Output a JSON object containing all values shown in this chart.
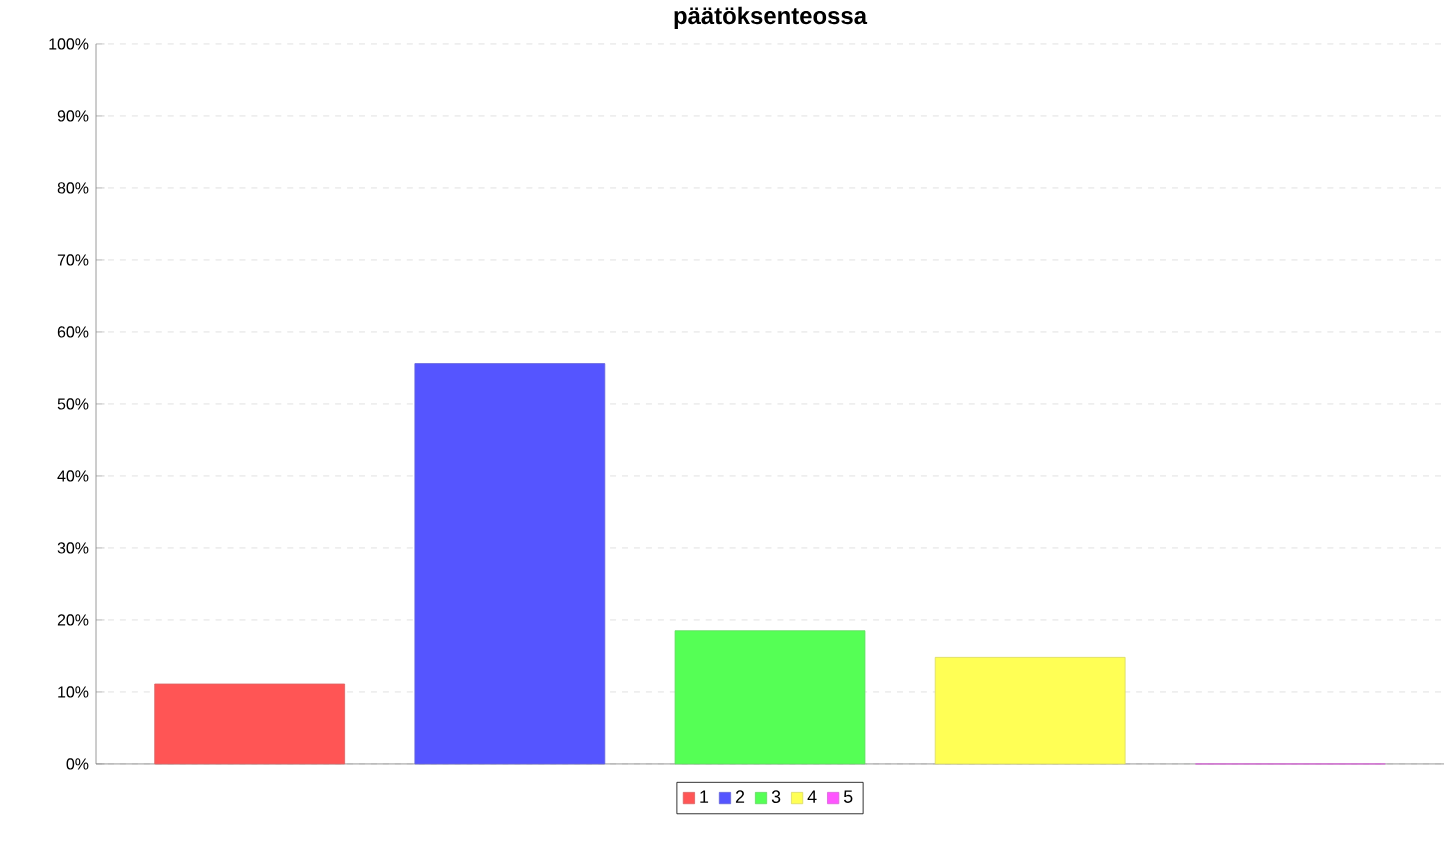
{
  "chart_data": {
    "type": "bar",
    "title": "päätöksenteossa",
    "categories": [
      null
    ],
    "series": [
      {
        "name": "1",
        "color": "#ff5555",
        "values": [
          11.1
        ]
      },
      {
        "name": "2",
        "color": "#5555ff",
        "values": [
          55.6
        ]
      },
      {
        "name": "3",
        "color": "#55ff55",
        "values": [
          18.5
        ]
      },
      {
        "name": "4",
        "color": "#ffff55",
        "values": [
          14.8
        ]
      },
      {
        "name": "5",
        "color": "#ff55ff",
        "values": [
          0
        ]
      }
    ],
    "ylim": [
      0,
      100
    ],
    "yticks": [
      {
        "value": 0,
        "label": "0%"
      },
      {
        "value": 10,
        "label": "10%"
      },
      {
        "value": 20,
        "label": "20%"
      },
      {
        "value": 30,
        "label": "30%"
      },
      {
        "value": 40,
        "label": "40%"
      },
      {
        "value": 50,
        "label": "50%"
      },
      {
        "value": 60,
        "label": "60%"
      },
      {
        "value": 70,
        "label": "70%"
      },
      {
        "value": 80,
        "label": "80%"
      },
      {
        "value": 90,
        "label": "90%"
      },
      {
        "value": 100,
        "label": "100%"
      }
    ],
    "grid": "y",
    "legend": "bottom"
  }
}
